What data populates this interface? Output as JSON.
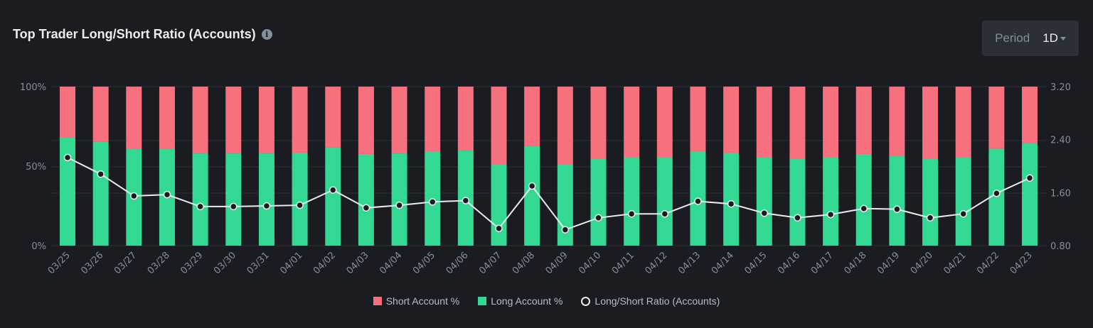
{
  "header": {
    "title": "Top Trader Long/Short Ratio (Accounts)",
    "info_icon": "info-icon",
    "period_label": "Period",
    "period_value": "1D"
  },
  "colors": {
    "short": "#f6707e",
    "long": "#33d893",
    "line": "#eaecef",
    "grid": "#2b2f36"
  },
  "chart_data": {
    "type": "bar",
    "title": "Top Trader Long/Short Ratio (Accounts)",
    "categories": [
      "03/25",
      "03/26",
      "03/27",
      "03/28",
      "03/29",
      "03/30",
      "03/31",
      "04/01",
      "04/02",
      "04/03",
      "04/04",
      "04/05",
      "04/06",
      "04/07",
      "04/08",
      "04/09",
      "04/10",
      "04/11",
      "04/12",
      "04/13",
      "04/14",
      "04/15",
      "04/16",
      "04/17",
      "04/18",
      "04/19",
      "04/20",
      "04/21",
      "04/22",
      "04/23"
    ],
    "series": [
      {
        "name": "Short Account %",
        "type": "stacked-bar",
        "values": [
          31.7,
          34.8,
          39.3,
          39.3,
          42.0,
          42.0,
          42.0,
          41.5,
          38.0,
          42.4,
          42.0,
          40.6,
          40.2,
          49.1,
          37.1,
          49.1,
          45.1,
          44.2,
          44.2,
          40.6,
          41.5,
          44.2,
          45.1,
          44.2,
          42.4,
          43.3,
          45.1,
          44.2,
          38.8,
          35.7
        ]
      },
      {
        "name": "Long Account %",
        "type": "stacked-bar",
        "values": [
          68.3,
          65.2,
          60.7,
          60.7,
          58.0,
          58.0,
          58.0,
          58.5,
          62.0,
          57.6,
          58.0,
          59.4,
          59.8,
          50.9,
          62.9,
          50.9,
          54.9,
          55.8,
          55.8,
          59.4,
          58.5,
          55.8,
          54.9,
          55.8,
          57.6,
          56.7,
          54.9,
          55.8,
          61.2,
          64.3
        ]
      },
      {
        "name": "Long/Short Ratio (Accounts)",
        "type": "line",
        "axis": "right",
        "values": [
          2.13,
          1.88,
          1.55,
          1.57,
          1.39,
          1.39,
          1.4,
          1.41,
          1.64,
          1.37,
          1.41,
          1.46,
          1.48,
          1.06,
          1.7,
          1.04,
          1.22,
          1.28,
          1.28,
          1.47,
          1.43,
          1.29,
          1.22,
          1.27,
          1.36,
          1.35,
          1.22,
          1.28,
          1.59,
          1.82
        ]
      }
    ],
    "left_axis": {
      "ticks": [
        "0%",
        "50%",
        "100%"
      ],
      "range": [
        0,
        100
      ]
    },
    "right_axis": {
      "ticks": [
        "0.80",
        "1.60",
        "2.40",
        "3.20"
      ],
      "range": [
        0.8,
        3.2
      ]
    },
    "legend": [
      "Short Account %",
      "Long Account %",
      "Long/Short Ratio (Accounts)"
    ],
    "legend_position": "bottom"
  }
}
